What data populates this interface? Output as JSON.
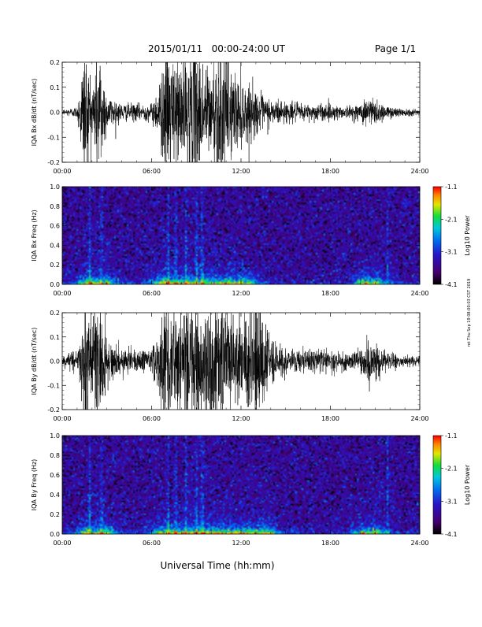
{
  "header": {
    "date_range": "2015/01/11   00:00-24:00 UT",
    "page": "Page 1/1"
  },
  "footer": {
    "xlabel": "Universal Time (hh:mm)",
    "side_stamp": "ret Thu Sep 19 08:00:03 CST 2019"
  },
  "x_ticks": [
    "00:00",
    "06:00",
    "12:00",
    "18:00",
    "24:00"
  ],
  "colorbar": {
    "label": "Log10 Power",
    "ticks": [
      "-1.1",
      "-2.1",
      "-3.1",
      "-4.1"
    ]
  },
  "chart_data": [
    {
      "type": "line",
      "id": "bx-waveform",
      "ylabel": "IQA Bx dB/dt (nT/sec)",
      "xlim": [
        0,
        24
      ],
      "ylim": [
        -0.2,
        0.2
      ],
      "yticks": [
        "0.2",
        "0.1",
        "0.0",
        "-0.1",
        "-0.2"
      ],
      "color": "#000000",
      "envelope": {
        "hours": [
          0,
          1,
          1.5,
          2,
          2.5,
          3,
          3.5,
          4,
          5,
          6,
          6.5,
          7,
          7.5,
          8,
          8.5,
          9,
          9.5,
          10,
          10.5,
          11,
          11.5,
          12,
          12.5,
          13,
          13.5,
          14,
          15,
          16,
          17,
          18,
          19,
          20,
          20.5,
          21,
          21.5,
          22,
          23,
          24
        ],
        "amplitude": [
          0.01,
          0.02,
          0.25,
          0.12,
          0.25,
          0.06,
          0.05,
          0.03,
          0.03,
          0.03,
          0.1,
          0.25,
          0.18,
          0.22,
          0.2,
          0.25,
          0.18,
          0.16,
          0.25,
          0.2,
          0.15,
          0.12,
          0.1,
          0.08,
          0.06,
          0.05,
          0.04,
          0.03,
          0.03,
          0.03,
          0.02,
          0.03,
          0.06,
          0.05,
          0.03,
          0.02,
          0.015,
          0.01
        ]
      }
    },
    {
      "type": "heatmap",
      "id": "bx-spectrogram",
      "ylabel": "IQA Bx Freq (Hz)",
      "xlim": [
        0,
        24
      ],
      "ylim": [
        0,
        1.0
      ],
      "yticks": [
        "1.0",
        "0.8",
        "0.6",
        "0.4",
        "0.2",
        "0.0"
      ],
      "zlim": [
        -4.1,
        -1.1
      ],
      "features": {
        "background_log_power": -3.5,
        "low_freq_enhancement_hours": [
          [
            1.5,
            3
          ],
          [
            6.5,
            12.5
          ],
          [
            20.2,
            21.2
          ]
        ],
        "vertical_lines_hours": [
          1.8,
          2.6,
          7.1,
          7.6,
          8.3,
          9.0,
          9.4,
          21.9
        ]
      }
    },
    {
      "type": "line",
      "id": "by-waveform",
      "ylabel": "IQA By dB/dt (nT/sec)",
      "xlim": [
        0,
        24
      ],
      "ylim": [
        -0.2,
        0.2
      ],
      "yticks": [
        "0.2",
        "0.1",
        "0.0",
        "-0.1",
        "-0.2"
      ],
      "color": "#000000",
      "envelope": {
        "hours": [
          0,
          1,
          1.5,
          2,
          2.5,
          3,
          3.5,
          4,
          5,
          6,
          6.5,
          7,
          7.5,
          8,
          8.5,
          9,
          9.5,
          10,
          10.5,
          11,
          11.5,
          12,
          12.5,
          13,
          13.5,
          14,
          15,
          16,
          17,
          18,
          19,
          20,
          20.5,
          21,
          21.5,
          22,
          23,
          24
        ],
        "amplitude": [
          0.02,
          0.04,
          0.25,
          0.15,
          0.25,
          0.08,
          0.06,
          0.05,
          0.04,
          0.04,
          0.12,
          0.25,
          0.2,
          0.22,
          0.25,
          0.25,
          0.2,
          0.18,
          0.25,
          0.2,
          0.15,
          0.14,
          0.18,
          0.25,
          0.2,
          0.08,
          0.05,
          0.04,
          0.04,
          0.04,
          0.03,
          0.04,
          0.1,
          0.06,
          0.04,
          0.03,
          0.02,
          0.02
        ]
      }
    },
    {
      "type": "heatmap",
      "id": "by-spectrogram",
      "ylabel": "IQA By Freq (Hz)",
      "xlim": [
        0,
        24
      ],
      "ylim": [
        0,
        1.0
      ],
      "yticks": [
        "1.0",
        "0.8",
        "0.6",
        "0.4",
        "0.2",
        "0.0"
      ],
      "zlim": [
        -4.1,
        -1.1
      ],
      "features": {
        "background_log_power": -3.5,
        "low_freq_enhancement_hours": [
          [
            1.5,
            3
          ],
          [
            6.5,
            14
          ],
          [
            20.2,
            21.2
          ]
        ],
        "vertical_lines_hours": [
          1.8,
          2.6,
          7.1,
          7.6,
          8.3,
          9.0,
          9.4,
          21.9
        ]
      }
    }
  ]
}
